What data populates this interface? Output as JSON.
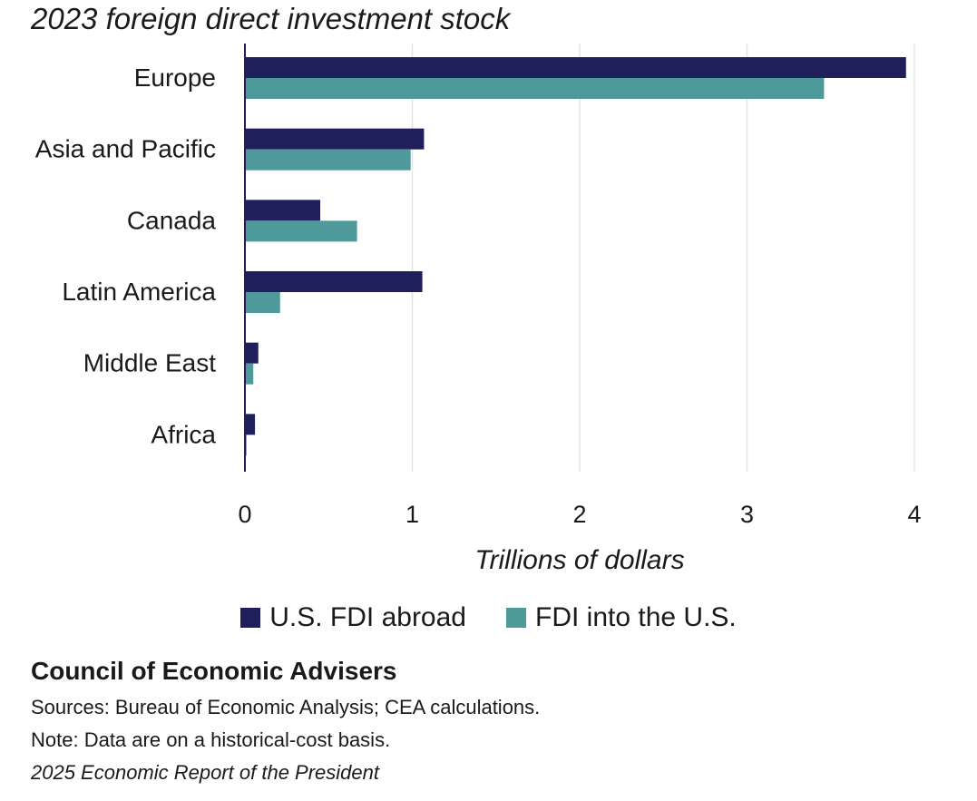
{
  "chart_data": {
    "type": "bar",
    "orientation": "horizontal",
    "title": "2023 foreign direct investment stock",
    "xlabel": "Trillions of dollars",
    "ylabel": "",
    "categories": [
      "Europe",
      "Asia and Pacific",
      "Canada",
      "Latin America",
      "Middle East",
      "Africa"
    ],
    "series": [
      {
        "name": "U.S. FDI abroad",
        "color": "#1f1f5c",
        "values": [
          3.95,
          1.07,
          0.45,
          1.06,
          0.08,
          0.06
        ]
      },
      {
        "name": "FDI into the U.S.",
        "color": "#4e9a9b",
        "values": [
          3.46,
          0.99,
          0.67,
          0.21,
          0.05,
          0.01
        ]
      }
    ],
    "xlim": [
      0,
      4
    ],
    "xticks": [
      "0",
      "1",
      "2",
      "3",
      "4"
    ],
    "grid": true,
    "legend": "bottom"
  },
  "footer": {
    "org": "Council of Economic Advisers",
    "sources": "Sources: Bureau of Economic Analysis; CEA calculations.",
    "note": "Note: Data are on a historical-cost basis.",
    "report": "2025 Economic Report of the President"
  }
}
